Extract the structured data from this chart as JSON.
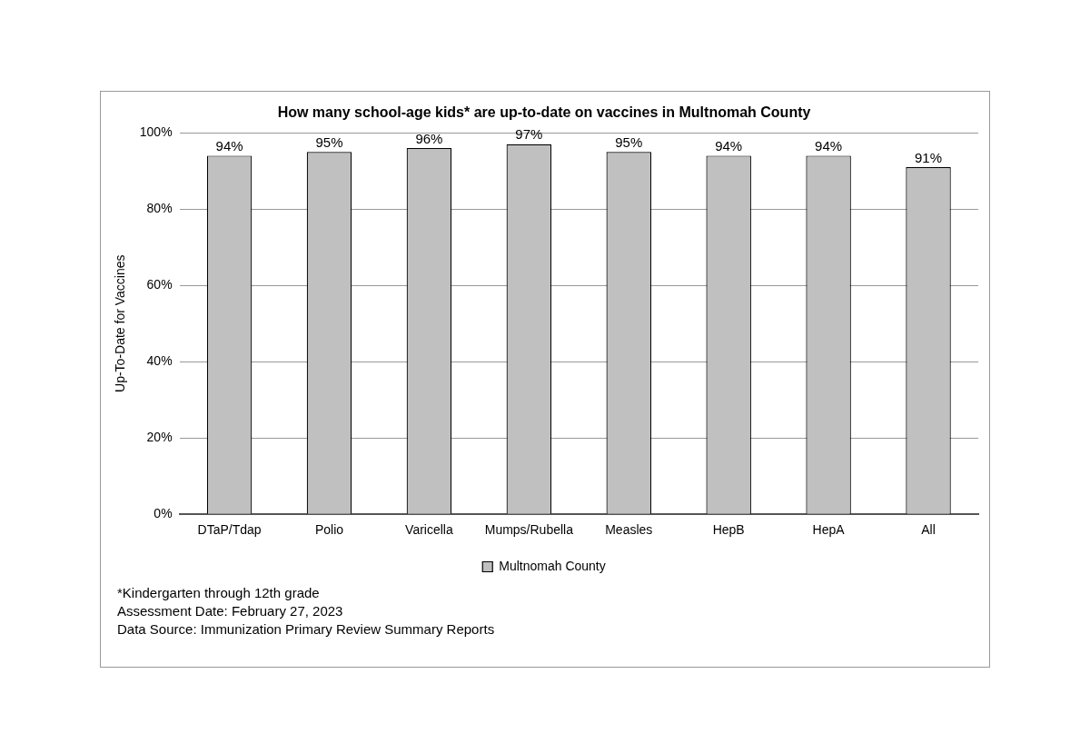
{
  "chart_data": {
    "type": "bar",
    "title": "How many school-age kids* are up-to-date on vaccines in Multnomah County",
    "ylabel": "Up-To-Date for Vaccines",
    "categories": [
      "DTaP/Tdap",
      "Polio",
      "Varicella",
      "Mumps/Rubella",
      "Measles",
      "HepB",
      "HepA",
      "All"
    ],
    "series": [
      {
        "name": "Multnomah County",
        "color": "#c0c0c0",
        "values": [
          94,
          95,
          96,
          97,
          95,
          94,
          94,
          91
        ],
        "value_labels": [
          "94%",
          "95%",
          "96%",
          "97%",
          "95%",
          "94%",
          "94%",
          "91%"
        ]
      }
    ],
    "ylim": [
      0,
      100
    ],
    "yticks": [
      {
        "value": 0,
        "label": "0%"
      },
      {
        "value": 20,
        "label": "20%"
      },
      {
        "value": 40,
        "label": "40%"
      },
      {
        "value": 60,
        "label": "60%"
      },
      {
        "value": 80,
        "label": "80%"
      },
      {
        "value": 100,
        "label": "100%"
      }
    ],
    "grid": "y",
    "legend": "bottom",
    "annotations": [
      "*Kindergarten through 12th grade",
      "Assessment Date: February 27, 2023",
      "Data Source: Immunization Primary Review Summary Reports"
    ]
  }
}
